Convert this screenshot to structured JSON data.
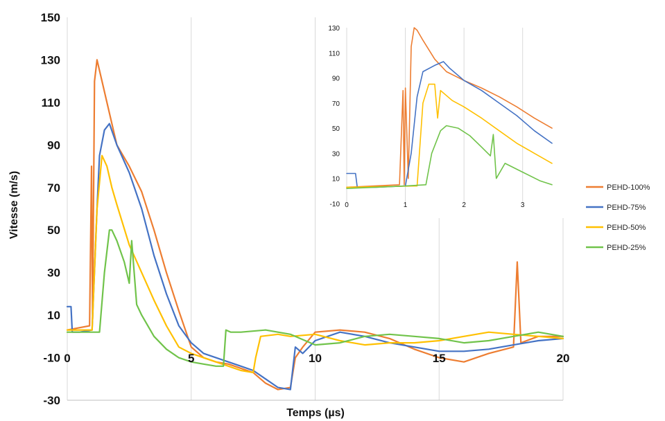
{
  "chart_data": [
    {
      "type": "line",
      "xlabel": "Temps (µs)",
      "ylabel": "Vitesse (m/s)",
      "xlim": [
        0,
        20
      ],
      "ylim": [
        -30,
        150
      ],
      "x_ticks": [
        "0",
        "5",
        "10",
        "15",
        "20"
      ],
      "y_ticks": [
        "150",
        "130",
        "110",
        "90",
        "70",
        "50",
        "30",
        "10",
        "-10",
        "-30"
      ],
      "grid": "vertical",
      "legend_position": "right",
      "series": [
        {
          "name": "PEHD-100%",
          "color": "#ED7D31",
          "x": [
            0,
            0.9,
            0.98,
            1.02,
            1.1,
            1.2,
            1.4,
            1.6,
            2.0,
            2.5,
            3.0,
            3.5,
            4.0,
            4.5,
            5.0,
            5.5,
            6.0,
            6.5,
            7.0,
            7.5,
            8.0,
            8.5,
            9.0,
            9.2,
            9.5,
            10.0,
            11.0,
            12.0,
            13.0,
            14.0,
            15.0,
            16.0,
            17.0,
            18.0,
            18.15,
            18.3,
            19.0,
            20.0
          ],
          "y": [
            3,
            5,
            80,
            8,
            120,
            130,
            120,
            110,
            90,
            80,
            68,
            50,
            30,
            12,
            -5,
            -10,
            -12,
            -13,
            -15,
            -17,
            -22,
            -25,
            -24,
            -10,
            -5,
            2,
            3,
            2,
            -1,
            -6,
            -10,
            -12,
            -8,
            -5,
            35,
            -3,
            0,
            0
          ]
        },
        {
          "name": "PEHD-75%",
          "color": "#4472C4",
          "x": [
            0,
            0.15,
            0.2,
            0.5,
            1.0,
            1.2,
            1.3,
            1.5,
            1.7,
            2.0,
            2.5,
            3.0,
            3.5,
            4.0,
            4.5,
            5.0,
            5.5,
            6.0,
            6.5,
            7.0,
            7.5,
            8.0,
            8.5,
            9.0,
            9.2,
            9.5,
            10.0,
            11.0,
            12.0,
            13.0,
            14.0,
            15.0,
            16.0,
            17.0,
            18.0,
            19.0,
            20.0
          ],
          "y": [
            14,
            14,
            2,
            2,
            3,
            60,
            85,
            97,
            100,
            90,
            77,
            60,
            38,
            20,
            5,
            -3,
            -8,
            -10,
            -12,
            -14,
            -16,
            -20,
            -24,
            -25,
            -5,
            -8,
            -2,
            2,
            0,
            -3,
            -5,
            -7,
            -7,
            -6,
            -4,
            -2,
            -1
          ]
        },
        {
          "name": "PEHD-50%",
          "color": "#FFC000",
          "x": [
            0,
            1.0,
            1.2,
            1.4,
            1.6,
            1.8,
            2.0,
            2.5,
            3.0,
            3.5,
            4.0,
            4.5,
            5.0,
            5.5,
            6.0,
            6.5,
            7.0,
            7.5,
            7.6,
            7.8,
            8.5,
            9.0,
            10.0,
            11.0,
            12.0,
            13.0,
            14.0,
            15.0,
            16.0,
            17.0,
            18.0,
            19.0,
            20.0
          ],
          "y": [
            3,
            3,
            60,
            85,
            80,
            70,
            62,
            43,
            30,
            17,
            5,
            -5,
            -8,
            -10,
            -12,
            -14,
            -16,
            -17,
            -10,
            0,
            1,
            0,
            1,
            -2,
            -4,
            -3,
            -3,
            -2,
            0,
            2,
            1,
            0,
            -1
          ]
        },
        {
          "name": "PEHD-25%",
          "color": "#70C34A",
          "x": [
            0,
            1.3,
            1.5,
            1.7,
            1.8,
            2.0,
            2.3,
            2.5,
            2.6,
            2.8,
            3.0,
            3.5,
            4.0,
            4.5,
            5.0,
            5.5,
            6.0,
            6.3,
            6.4,
            6.6,
            7.0,
            8.0,
            9.0,
            10.0,
            11.0,
            12.0,
            13.0,
            14.0,
            15.0,
            16.0,
            17.0,
            18.0,
            19.0,
            20.0
          ],
          "y": [
            2,
            2,
            30,
            50,
            50,
            45,
            35,
            25,
            45,
            15,
            10,
            0,
            -6,
            -10,
            -12,
            -13,
            -14,
            -14,
            3,
            2,
            2,
            3,
            1,
            -4,
            -3,
            0,
            1,
            0,
            -1,
            -3,
            -2,
            0,
            2,
            0
          ]
        }
      ]
    },
    {
      "type": "line",
      "xlim": [
        0,
        3.5
      ],
      "ylim": [
        -10,
        130
      ],
      "x_ticks": [
        "0",
        "1",
        "2",
        "3"
      ],
      "y_ticks": [
        "130",
        "110",
        "90",
        "70",
        "50",
        "30",
        "10",
        "-10"
      ],
      "grid": "vertical",
      "series": [
        {
          "color": "#ED7D31",
          "x": [
            0,
            0.9,
            0.96,
            0.98,
            1.0,
            1.05,
            1.1,
            1.15,
            1.2,
            1.3,
            1.5,
            1.7,
            2.0,
            2.3,
            2.6,
            2.9,
            3.2,
            3.5
          ],
          "y": [
            3,
            5,
            80,
            5,
            82,
            10,
            115,
            130,
            128,
            120,
            105,
            95,
            88,
            82,
            75,
            67,
            58,
            50
          ]
        },
        {
          "color": "#4472C4",
          "x": [
            0,
            0.15,
            0.18,
            0.5,
            1.0,
            1.1,
            1.2,
            1.3,
            1.5,
            1.65,
            1.75,
            2.0,
            2.3,
            2.6,
            2.9,
            3.2,
            3.5
          ],
          "y": [
            14,
            14,
            3,
            3,
            4,
            30,
            75,
            95,
            100,
            103,
            98,
            88,
            80,
            70,
            60,
            48,
            38
          ]
        },
        {
          "color": "#FFC000",
          "x": [
            0,
            1.2,
            1.3,
            1.4,
            1.5,
            1.55,
            1.6,
            1.8,
            2.0,
            2.3,
            2.6,
            2.9,
            3.2,
            3.5
          ],
          "y": [
            3,
            4,
            70,
            85,
            85,
            58,
            80,
            72,
            67,
            58,
            48,
            38,
            30,
            22
          ]
        },
        {
          "color": "#70C34A",
          "x": [
            0,
            0.5,
            1.0,
            1.35,
            1.45,
            1.6,
            1.7,
            1.9,
            2.1,
            2.3,
            2.45,
            2.5,
            2.55,
            2.7,
            3.0,
            3.3,
            3.5
          ],
          "y": [
            2,
            3,
            4,
            5,
            30,
            48,
            52,
            50,
            44,
            35,
            28,
            45,
            10,
            22,
            15,
            8,
            5
          ]
        }
      ]
    }
  ],
  "legend": {
    "items": [
      {
        "label": "PEHD-100%",
        "color": "#ED7D31"
      },
      {
        "label": "PEHD-75%",
        "color": "#4472C4"
      },
      {
        "label": "PEHD-50%",
        "color": "#FFC000"
      },
      {
        "label": "PEHD-25%",
        "color": "#70C34A"
      }
    ]
  }
}
